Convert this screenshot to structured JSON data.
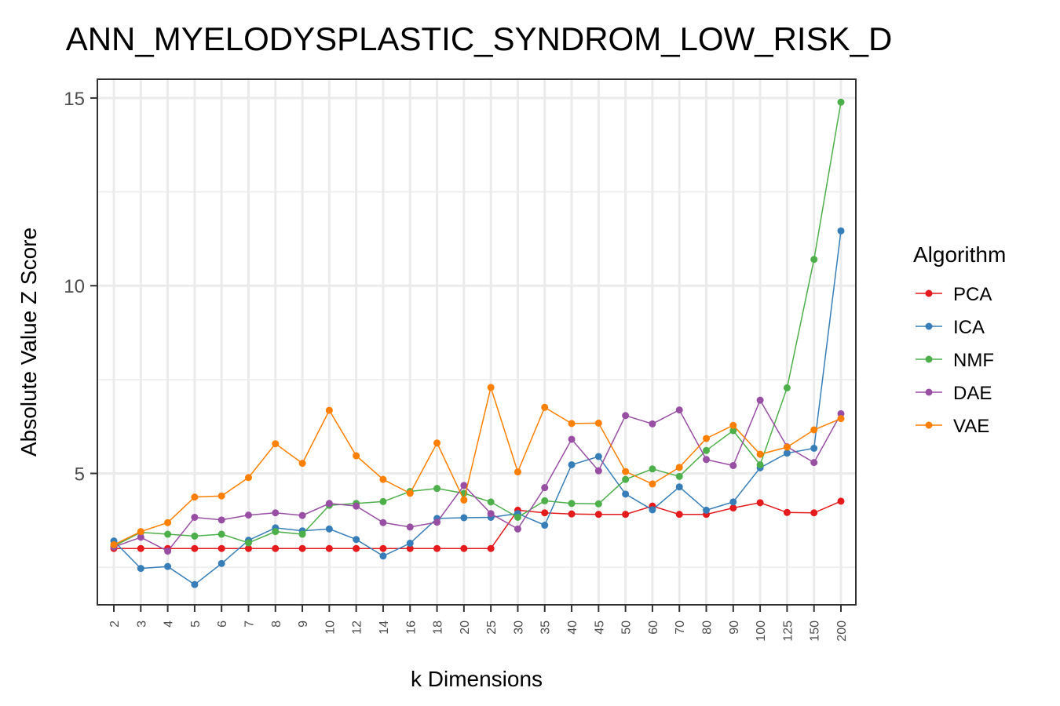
{
  "chart_data": {
    "type": "line",
    "title": "ANN_MYELODYSPLASTIC_SYNDROM_LOW_RISK_D",
    "xlabel": "k Dimensions",
    "ylabel": "Absolute Value Z Score",
    "categories": [
      "2",
      "3",
      "4",
      "5",
      "6",
      "7",
      "8",
      "9",
      "10",
      "12",
      "14",
      "16",
      "18",
      "20",
      "25",
      "30",
      "35",
      "40",
      "45",
      "50",
      "60",
      "70",
      "80",
      "90",
      "100",
      "125",
      "150",
      "200"
    ],
    "ylim": [
      1.5,
      15.5
    ],
    "yticks": [
      5,
      10,
      15
    ],
    "grid": true,
    "legend_title": "Algorithm",
    "legend_position": "right",
    "series": [
      {
        "name": "PCA",
        "color": "#e41a1c",
        "values": [
          3.0,
          3.0,
          3.0,
          3.0,
          3.0,
          3.0,
          3.0,
          3.0,
          3.0,
          3.0,
          3.0,
          3.0,
          3.0,
          3.0,
          3.0,
          4.02,
          3.95,
          3.92,
          3.91,
          3.91,
          4.13,
          3.91,
          3.91,
          4.08,
          4.22,
          3.96,
          3.95,
          4.26
        ]
      },
      {
        "name": "ICA",
        "color": "#377eb8",
        "values": [
          3.2,
          2.47,
          2.52,
          2.04,
          2.6,
          3.22,
          3.55,
          3.47,
          3.52,
          3.24,
          2.8,
          3.14,
          3.8,
          3.82,
          3.83,
          3.93,
          3.62,
          5.23,
          5.45,
          4.45,
          4.03,
          4.64,
          4.02,
          4.24,
          5.15,
          5.54,
          5.67,
          11.46
        ]
      },
      {
        "name": "NMF",
        "color": "#4daf4a",
        "values": [
          3.06,
          3.43,
          3.38,
          3.33,
          3.38,
          3.15,
          3.45,
          3.38,
          4.15,
          4.2,
          4.25,
          4.52,
          4.6,
          4.47,
          4.24,
          3.83,
          4.27,
          4.2,
          4.19,
          4.84,
          5.12,
          4.92,
          5.61,
          6.14,
          5.23,
          7.28,
          10.7,
          14.89
        ]
      },
      {
        "name": "DAE",
        "color": "#984ea3",
        "values": [
          3.04,
          3.3,
          2.93,
          3.83,
          3.76,
          3.89,
          3.95,
          3.88,
          4.2,
          4.13,
          3.69,
          3.57,
          3.7,
          4.68,
          3.93,
          3.52,
          4.62,
          5.91,
          5.07,
          6.54,
          6.32,
          6.69,
          5.37,
          5.21,
          6.95,
          5.71,
          5.29,
          6.59
        ]
      },
      {
        "name": "VAE",
        "color": "#ff7f00",
        "values": [
          3.1,
          3.45,
          3.69,
          4.37,
          4.4,
          4.89,
          5.79,
          5.27,
          6.68,
          5.47,
          4.84,
          4.47,
          5.81,
          4.29,
          7.29,
          5.04,
          6.76,
          6.33,
          6.34,
          5.05,
          4.72,
          5.16,
          5.93,
          6.28,
          5.51,
          5.7,
          6.16,
          6.46
        ]
      }
    ]
  }
}
